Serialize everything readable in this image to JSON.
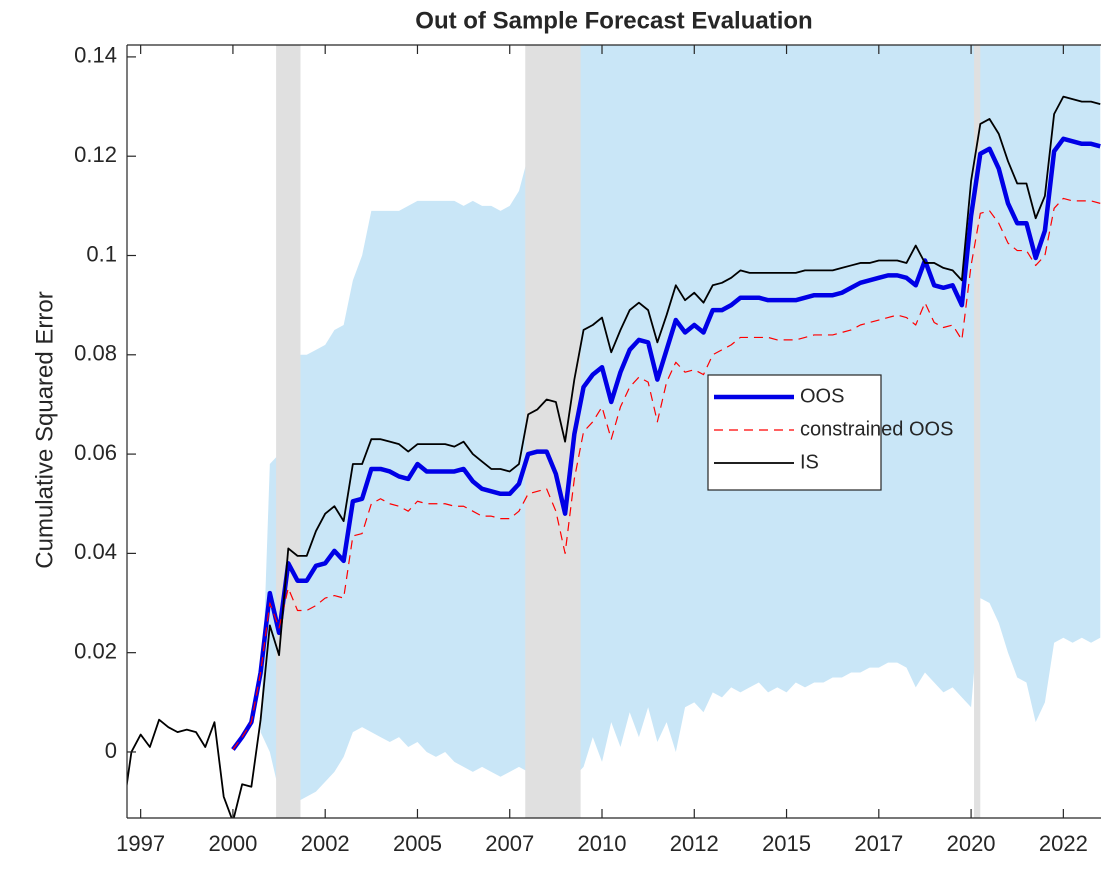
{
  "chart_data": {
    "type": "line",
    "title": "Out of Sample Forecast Evaluation",
    "y_label": "Cumulative Squared Error",
    "xlim": [
      1997.13,
      2023.52
    ],
    "ylim": [
      -0.0133,
      0.1424
    ],
    "xticks": [
      {
        "value": 1997.5,
        "label": "1997"
      },
      2000,
      {
        "value": 2002.5,
        "label": "2002"
      },
      2005,
      {
        "value": 2007.5,
        "label": "2007"
      },
      2010,
      {
        "value": 2012.5,
        "label": "2012"
      },
      2015,
      {
        "value": 2017.5,
        "label": "2017"
      },
      2020,
      {
        "value": 2022.5,
        "label": "2022"
      }
    ],
    "yticks": [
      0,
      0.02,
      0.04,
      0.06,
      0.08,
      0.1,
      0.12,
      0.14
    ],
    "grid": false,
    "legend_location": "east",
    "shaded_periods": {
      "color": "#e0e0e0",
      "periods": [
        [
          2001.17,
          2001.83
        ],
        [
          2007.92,
          2009.42
        ],
        [
          2020.08,
          2020.25
        ]
      ]
    },
    "x": [
      1997,
      1997.25,
      1997.5,
      1997.75,
      1998,
      1998.25,
      1998.5,
      1998.75,
      1999,
      1999.25,
      1999.5,
      1999.75,
      2000,
      2000.25,
      2000.5,
      2000.75,
      2001,
      2001.25,
      2001.5,
      2001.75,
      2002,
      2002.25,
      2002.5,
      2002.75,
      2003,
      2003.25,
      2003.5,
      2003.75,
      2004,
      2004.25,
      2004.5,
      2004.75,
      2005,
      2005.25,
      2005.5,
      2005.75,
      2006,
      2006.25,
      2006.5,
      2006.75,
      2007,
      2007.25,
      2007.5,
      2007.75,
      2008,
      2008.25,
      2008.5,
      2008.75,
      2009,
      2009.25,
      2009.5,
      2009.75,
      2010,
      2010.25,
      2010.5,
      2010.75,
      2011,
      2011.25,
      2011.5,
      2011.75,
      2012,
      2012.25,
      2012.5,
      2012.75,
      2013,
      2013.25,
      2013.5,
      2013.75,
      2014,
      2014.25,
      2014.5,
      2014.75,
      2015,
      2015.25,
      2015.5,
      2015.75,
      2016,
      2016.25,
      2016.5,
      2016.75,
      2017,
      2017.25,
      2017.5,
      2017.75,
      2018,
      2018.25,
      2018.5,
      2018.75,
      2019,
      2019.25,
      2019.5,
      2019.75,
      2020,
      2020.25,
      2020.5,
      2020.75,
      2021,
      2021.25,
      2021.5,
      2021.75,
      2022,
      2022.25,
      2022.5,
      2022.75,
      2023,
      2023.25,
      2023.5
    ],
    "band": {
      "color": "#c9e6f7",
      "upper": [
        null,
        null,
        null,
        null,
        null,
        null,
        null,
        null,
        null,
        null,
        null,
        null,
        null,
        null,
        null,
        0.004,
        0.058,
        0.06,
        0.079,
        0.08,
        0.08,
        0.081,
        0.082,
        0.085,
        0.086,
        0.095,
        0.1,
        0.109,
        0.109,
        0.109,
        0.109,
        0.11,
        0.111,
        0.111,
        0.111,
        0.111,
        0.111,
        0.11,
        0.111,
        0.11,
        0.11,
        0.109,
        0.11,
        0.113,
        0.12,
        0.125,
        0.13,
        0.135,
        0.14,
        0.145,
        0.15,
        0.15,
        0.15,
        0.15,
        0.15,
        0.15,
        0.15,
        0.15,
        0.15,
        0.15,
        0.15,
        0.15,
        0.15,
        0.15,
        0.15,
        0.15,
        0.15,
        0.15,
        0.15,
        0.15,
        0.15,
        0.15,
        0.15,
        0.15,
        0.15,
        0.15,
        0.15,
        0.15,
        0.15,
        0.15,
        0.15,
        0.15,
        0.15,
        0.15,
        0.15,
        0.15,
        0.15,
        0.15,
        0.15,
        0.15,
        0.15,
        0.15,
        0.15,
        0.15,
        0.15,
        0.15,
        0.15,
        0.15,
        0.15,
        0.15,
        0.15,
        0.15,
        0.15,
        0.15,
        0.15,
        0.15,
        0.15
      ],
      "lower": [
        null,
        null,
        null,
        null,
        null,
        null,
        null,
        null,
        null,
        null,
        null,
        null,
        null,
        null,
        null,
        0.004,
        0.0,
        -0.008,
        -0.009,
        -0.01,
        -0.009,
        -0.008,
        -0.006,
        -0.004,
        -0.001,
        0.004,
        0.005,
        0.004,
        0.003,
        0.002,
        0.003,
        0.001,
        0.002,
        0.0,
        -0.001,
        0.0,
        -0.002,
        -0.003,
        -0.004,
        -0.003,
        -0.004,
        -0.005,
        -0.004,
        -0.003,
        -0.004,
        -0.005,
        -0.006,
        -0.006,
        -0.006,
        -0.005,
        -0.003,
        0.003,
        -0.002,
        0.006,
        0.001,
        0.008,
        0.003,
        0.009,
        0.002,
        0.006,
        0.0,
        0.009,
        0.01,
        0.008,
        0.012,
        0.011,
        0.013,
        0.012,
        0.013,
        0.014,
        0.012,
        0.013,
        0.012,
        0.014,
        0.013,
        0.014,
        0.014,
        0.015,
        0.015,
        0.016,
        0.016,
        0.017,
        0.017,
        0.018,
        0.018,
        0.017,
        0.013,
        0.016,
        0.014,
        0.012,
        0.013,
        0.011,
        0.009,
        0.031,
        0.03,
        0.026,
        0.02,
        0.015,
        0.014,
        0.006,
        0.01,
        0.022,
        0.023,
        0.022,
        0.023,
        0.022,
        0.023
      ]
    },
    "series": [
      {
        "name": "OOS",
        "color": "#0000e6",
        "width": 4.5,
        "dash": "none",
        "values": [
          null,
          null,
          null,
          null,
          null,
          null,
          null,
          null,
          null,
          null,
          null,
          null,
          0.0005,
          0.003,
          0.006,
          0.016,
          0.032,
          0.024,
          0.038,
          0.0345,
          0.0345,
          0.0375,
          0.038,
          0.0405,
          0.0385,
          0.0505,
          0.051,
          0.057,
          0.057,
          0.0565,
          0.0555,
          0.055,
          0.058,
          0.0565,
          0.0565,
          0.0565,
          0.0565,
          0.057,
          0.0545,
          0.053,
          0.0525,
          0.052,
          0.052,
          0.054,
          0.06,
          0.0605,
          0.0605,
          0.056,
          0.048,
          0.064,
          0.0735,
          0.076,
          0.0775,
          0.0705,
          0.0765,
          0.081,
          0.083,
          0.0825,
          0.075,
          0.081,
          0.087,
          0.0845,
          0.086,
          0.0845,
          0.089,
          0.089,
          0.09,
          0.0915,
          0.0915,
          0.0915,
          0.091,
          0.091,
          0.091,
          0.091,
          0.0915,
          0.092,
          0.092,
          0.092,
          0.0925,
          0.0935,
          0.0945,
          0.095,
          0.0955,
          0.096,
          0.096,
          0.0955,
          0.094,
          0.099,
          0.094,
          0.0935,
          0.094,
          0.09,
          0.108,
          0.1205,
          0.1215,
          0.1175,
          0.1105,
          0.1065,
          0.1065,
          0.0995,
          0.105,
          0.121,
          0.1235,
          0.123,
          0.1225,
          0.1225,
          0.122
        ]
      },
      {
        "name": "constrained OOS",
        "color": "#ff0000",
        "width": 1.2,
        "dash": "9 6",
        "values": [
          null,
          null,
          null,
          null,
          null,
          null,
          null,
          null,
          null,
          null,
          null,
          null,
          0.0005,
          0.003,
          0.006,
          0.016,
          0.03,
          0.025,
          0.033,
          0.0285,
          0.0285,
          0.0295,
          0.031,
          0.0315,
          0.031,
          0.0435,
          0.044,
          0.05,
          0.051,
          0.05,
          0.0495,
          0.0485,
          0.0505,
          0.05,
          0.05,
          0.05,
          0.0495,
          0.0495,
          0.0485,
          0.0475,
          0.0475,
          0.047,
          0.047,
          0.0485,
          0.052,
          0.0525,
          0.053,
          0.0485,
          0.04,
          0.055,
          0.0645,
          0.0665,
          0.0695,
          0.063,
          0.0695,
          0.0735,
          0.0755,
          0.0745,
          0.0665,
          0.0745,
          0.0785,
          0.0765,
          0.077,
          0.076,
          0.08,
          0.081,
          0.082,
          0.0835,
          0.0835,
          0.0835,
          0.0835,
          0.083,
          0.083,
          0.083,
          0.0835,
          0.084,
          0.084,
          0.084,
          0.0845,
          0.085,
          0.086,
          0.0865,
          0.087,
          0.0875,
          0.088,
          0.0875,
          0.086,
          0.0905,
          0.0865,
          0.0855,
          0.086,
          0.083,
          0.098,
          0.1085,
          0.109,
          0.1065,
          0.1025,
          0.101,
          0.101,
          0.098,
          0.1,
          0.1095,
          0.1115,
          0.111,
          0.111,
          0.111,
          0.1105
        ]
      },
      {
        "name": "IS",
        "color": "#000000",
        "width": 1.8,
        "dash": "none",
        "values": [
          -0.013,
          0.0,
          0.0035,
          0.001,
          0.0065,
          0.005,
          0.004,
          0.0045,
          0.004,
          0.001,
          0.006,
          -0.009,
          -0.014,
          -0.0065,
          -0.007,
          0.0065,
          0.0255,
          0.0195,
          0.041,
          0.0395,
          0.0395,
          0.0445,
          0.048,
          0.0495,
          0.0465,
          0.058,
          0.058,
          0.063,
          0.063,
          0.0625,
          0.062,
          0.0605,
          0.062,
          0.062,
          0.062,
          0.062,
          0.0615,
          0.0625,
          0.06,
          0.0585,
          0.057,
          0.057,
          0.0565,
          0.058,
          0.068,
          0.069,
          0.071,
          0.0705,
          0.0625,
          0.075,
          0.085,
          0.086,
          0.0875,
          0.0805,
          0.085,
          0.089,
          0.0905,
          0.089,
          0.0825,
          0.088,
          0.094,
          0.091,
          0.0925,
          0.0905,
          0.094,
          0.0945,
          0.0955,
          0.097,
          0.0965,
          0.0965,
          0.0965,
          0.0965,
          0.0965,
          0.0965,
          0.097,
          0.097,
          0.097,
          0.097,
          0.0975,
          0.098,
          0.0985,
          0.0985,
          0.099,
          0.099,
          0.099,
          0.0985,
          0.102,
          0.0985,
          0.0985,
          0.0975,
          0.097,
          0.095,
          0.115,
          0.1265,
          0.1275,
          0.1245,
          0.119,
          0.1145,
          0.1145,
          0.1075,
          0.112,
          0.1285,
          0.132,
          0.1315,
          0.131,
          0.131,
          0.1305
        ]
      }
    ]
  }
}
